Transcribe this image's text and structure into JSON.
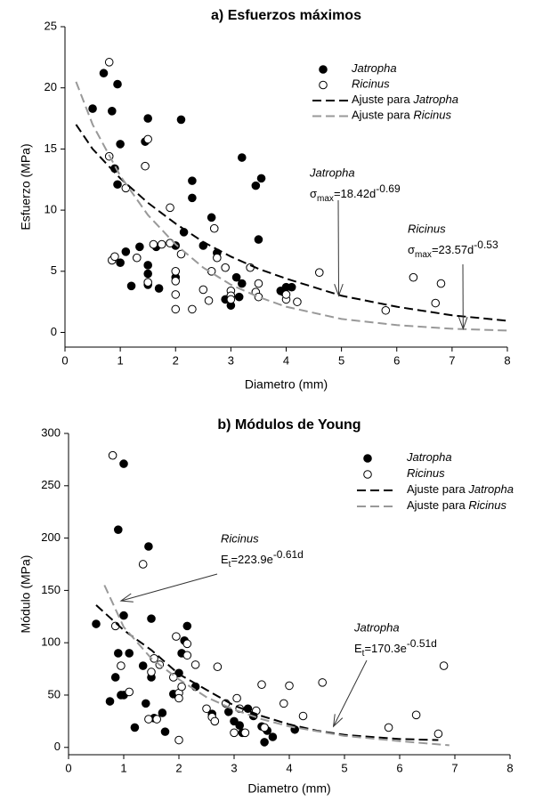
{
  "chart_data": [
    {
      "type": "scatter",
      "title": "a) Esfuerzos máximos",
      "x_label": "Diametro (mm)",
      "y_label": "Esfuerzo (MPa)",
      "xlim": [
        0,
        8
      ],
      "ylim": [
        -1.2,
        25
      ],
      "xticks": [
        0,
        1,
        2,
        3,
        4,
        5,
        6,
        7,
        8
      ],
      "yticks": [
        0,
        5,
        10,
        15,
        20,
        25
      ],
      "legend": "upper right",
      "series": [
        {
          "name": "Jatropha",
          "color": "#000000",
          "marker": "filled",
          "x": [
            0.5,
            0.7,
            0.85,
            0.95,
            0.9,
            0.95,
            1.0,
            1.0,
            1.1,
            1.2,
            1.35,
            1.45,
            1.5,
            1.5,
            1.5,
            1.5,
            1.65,
            1.7,
            2.0,
            2.0,
            2.1,
            2.15,
            2.3,
            2.3,
            2.5,
            2.65,
            2.75,
            2.9,
            3.0,
            3.0,
            3.1,
            3.15,
            3.2,
            3.2,
            3.45,
            3.5,
            3.55,
            3.9,
            4.0,
            4.1,
            3.95
          ],
          "values": [
            18.3,
            21.2,
            18.1,
            20.3,
            13.4,
            12.1,
            15.4,
            5.7,
            6.6,
            3.8,
            7.0,
            15.6,
            17.5,
            5.5,
            4.8,
            3.9,
            7.0,
            3.6,
            4.5,
            7.1,
            17.4,
            8.2,
            12.4,
            11.0,
            7.1,
            9.4,
            6.5,
            2.7,
            2.2,
            3.0,
            4.5,
            2.9,
            14.3,
            4.0,
            12.0,
            7.6,
            12.6,
            3.4,
            3.7,
            3.7,
            3.3
          ]
        },
        {
          "name": "Ricinus",
          "color": "#000000",
          "marker": "open",
          "x": [
            0.8,
            0.8,
            0.85,
            0.9,
            1.1,
            1.3,
            1.45,
            1.5,
            1.5,
            1.6,
            1.75,
            1.9,
            1.9,
            2.0,
            2.0,
            2.0,
            2.0,
            2.1,
            2.3,
            2.5,
            2.6,
            2.65,
            2.7,
            2.75,
            2.9,
            3.0,
            3.0,
            3.0,
            3.35,
            3.45,
            3.5,
            3.5,
            4.0,
            4.0,
            4.2,
            4.6,
            5.8,
            6.3,
            6.7,
            6.8
          ],
          "values": [
            22.1,
            14.4,
            5.9,
            6.2,
            11.8,
            6.1,
            13.6,
            15.8,
            4.1,
            7.2,
            7.2,
            7.3,
            10.2,
            5.0,
            4.2,
            3.1,
            1.9,
            6.4,
            1.9,
            3.5,
            2.6,
            5.0,
            8.5,
            6.1,
            5.3,
            3.4,
            3.0,
            2.7,
            5.3,
            3.3,
            4.0,
            2.9,
            2.7,
            3.1,
            2.5,
            4.9,
            1.8,
            4.5,
            2.4,
            4.0
          ]
        },
        {
          "name": "Ajuste para Jatropha",
          "color": "#000000",
          "line": "dashed",
          "x": [
            0.2,
            0.5,
            1,
            1.5,
            2,
            2.5,
            3,
            3.5,
            4,
            5,
            6,
            7,
            8
          ],
          "values": [
            17,
            15,
            12.6,
            10.6,
            8.9,
            7.4,
            6.2,
            5.2,
            4.4,
            3,
            2.1,
            1.4,
            0.95
          ]
        },
        {
          "name": "Ajuste para Ricinus",
          "color": "#999999",
          "line": "dashed",
          "x": [
            0.2,
            0.5,
            1,
            1.5,
            2,
            2.5,
            3,
            3.5,
            4,
            5,
            6,
            7,
            8
          ],
          "values": [
            20.5,
            17,
            12.8,
            9.6,
            7.2,
            5.3,
            3.9,
            2.9,
            2.1,
            1.1,
            0.6,
            0.3,
            0.15
          ]
        }
      ],
      "annotations": [
        {
          "label": "Jatropha",
          "symbol": "σ",
          "subscript": "max",
          "expression": "=18.42d",
          "exponent": "-0.69",
          "xy": [
            4.95,
            3
          ]
        },
        {
          "label": "Ricinus",
          "symbol": "σ",
          "subscript": "max",
          "expression": "=23.57d",
          "exponent": "-0.53",
          "xy": [
            7.2,
            0.3
          ]
        }
      ]
    },
    {
      "type": "scatter",
      "title": "b) Módulos de Young",
      "x_label": "Diametro (mm)",
      "y_label": "Módulo (MPa)",
      "xlim": [
        0,
        8
      ],
      "ylim": [
        -7,
        300
      ],
      "xticks": [
        0,
        1,
        2,
        3,
        4,
        5,
        6,
        7,
        8
      ],
      "yticks": [
        0,
        50,
        100,
        150,
        200,
        250,
        300
      ],
      "legend": "upper right",
      "series": [
        {
          "name": "Jatropha",
          "color": "#000000",
          "marker": "filled",
          "x": [
            0.5,
            0.75,
            0.85,
            0.9,
            0.9,
            0.95,
            1.0,
            1.0,
            1.0,
            1.1,
            1.2,
            1.35,
            1.4,
            1.45,
            1.5,
            1.5,
            1.55,
            1.7,
            1.75,
            1.9,
            2.0,
            2.05,
            2.1,
            2.15,
            2.3,
            2.6,
            2.65,
            2.9,
            3.0,
            3.1,
            3.15,
            3.25,
            3.35,
            3.5,
            3.55,
            3.6,
            3.7,
            4.1
          ],
          "values": [
            118,
            44,
            67,
            208,
            90,
            50,
            271,
            126,
            50,
            90,
            19,
            78,
            42,
            192,
            123,
            67,
            28,
            33,
            15,
            51,
            71,
            90,
            102,
            116,
            58,
            32,
            25,
            34,
            25,
            21,
            14,
            37,
            30,
            20,
            5,
            16,
            10,
            17
          ]
        },
        {
          "name": "Ricinus",
          "color": "#000000",
          "marker": "open",
          "x": [
            0.8,
            0.85,
            0.95,
            1.1,
            1.35,
            1.45,
            1.5,
            1.55,
            1.6,
            1.65,
            1.9,
            1.95,
            2.0,
            2.0,
            2.0,
            2.05,
            2.15,
            2.15,
            2.3,
            2.5,
            2.6,
            2.65,
            2.7,
            2.85,
            3.0,
            3.05,
            3.1,
            3.2,
            3.4,
            3.5,
            3.55,
            3.9,
            4.0,
            4.25,
            4.6,
            5.8,
            6.3,
            6.7,
            6.8
          ],
          "values": [
            279,
            116,
            78,
            53,
            175,
            27,
            72,
            85,
            27,
            79,
            67,
            106,
            52,
            47,
            7,
            58,
            99,
            88,
            79,
            37,
            29,
            25,
            77,
            42,
            14,
            47,
            37,
            14,
            35,
            60,
            19,
            42,
            59,
            30,
            62,
            19,
            31,
            13,
            78
          ]
        },
        {
          "name": "Ajuste para Jatropha",
          "color": "#000000",
          "line": "dashed",
          "x": [
            0.5,
            1,
            1.5,
            2,
            2.5,
            3,
            3.5,
            4,
            4.5,
            5,
            6,
            6.7
          ],
          "values": [
            136,
            112,
            93,
            70,
            55,
            40,
            30,
            22,
            16,
            12,
            8,
            7
          ]
        },
        {
          "name": "Ajuste para Ricinus",
          "color": "#999999",
          "line": "dashed",
          "x": [
            0.65,
            1,
            1.5,
            2,
            2.5,
            3,
            3.5,
            4,
            5,
            6,
            6.9
          ],
          "values": [
            155,
            115,
            85,
            65,
            48,
            36,
            27,
            20,
            11,
            6,
            2
          ]
        }
      ],
      "annotations": [
        {
          "label": "Ricinus",
          "symbol": "E",
          "subscript": "t",
          "expression": "=223.9e",
          "exponent": "-0.61d",
          "xy": [
            0.95,
            140
          ]
        },
        {
          "label": "Jatropha",
          "symbol": "E",
          "subscript": "t",
          "expression": "=170.3e",
          "exponent": "-0.51d",
          "xy": [
            4.8,
            20
          ]
        }
      ]
    }
  ]
}
